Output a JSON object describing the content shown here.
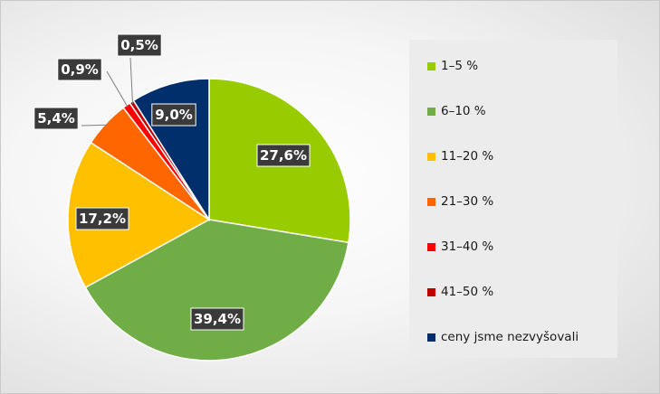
{
  "chart_data": {
    "type": "pie",
    "start_angle_deg": 0,
    "direction": "clockwise",
    "legend_position": "right",
    "slices": [
      {
        "label": "1–5 %",
        "value": 27.6,
        "display": "27,6%",
        "color": "#99cc00"
      },
      {
        "label": "6–10 %",
        "value": 39.4,
        "display": "39,4%",
        "color": "#70ad47"
      },
      {
        "label": "11–20 %",
        "value": 17.2,
        "display": "17,2%",
        "color": "#ffc000"
      },
      {
        "label": "21–30 %",
        "value": 5.4,
        "display": "5,4%",
        "color": "#ff6600"
      },
      {
        "label": "31–40 %",
        "value": 0.9,
        "display": "0,9%",
        "color": "#ff0000"
      },
      {
        "label": "41–50 %",
        "value": 0.5,
        "display": "0,5%",
        "color": "#c00000"
      },
      {
        "label": "ceny jsme nezvyšovali",
        "value": 9.0,
        "display": "9,0%",
        "color": "#002f6c"
      }
    ]
  }
}
